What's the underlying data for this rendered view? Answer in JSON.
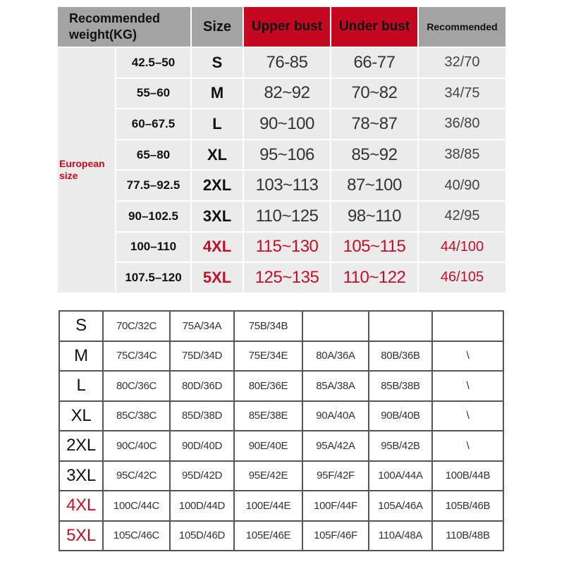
{
  "colors": {
    "accent_red": "#c40820",
    "header_gray": "#a3a3a3",
    "body_gray": "#ebebeb"
  },
  "top_table": {
    "headers": {
      "weight": "Recommended weight(KG)",
      "size": "Size",
      "upper_bust": "Upper bust",
      "under_bust": "Under bust",
      "recommended": "Recommended"
    },
    "group_label": "European size",
    "rows": [
      {
        "weight": "42.5–50",
        "size": "S",
        "upper": "76-85",
        "under": "66-77",
        "rec": "32/70",
        "highlight": false
      },
      {
        "weight": "55–60",
        "size": "M",
        "upper": "82~92",
        "under": "70~82",
        "rec": "34/75",
        "highlight": false
      },
      {
        "weight": "60–67.5",
        "size": "L",
        "upper": "90~100",
        "under": "78~87",
        "rec": "36/80",
        "highlight": false
      },
      {
        "weight": "65–80",
        "size": "XL",
        "upper": "95~106",
        "under": "85~92",
        "rec": "38/85",
        "highlight": false
      },
      {
        "weight": "77.5–92.5",
        "size": "2XL",
        "upper": "103~113",
        "under": "87~100",
        "rec": "40/90",
        "highlight": false
      },
      {
        "weight": "90–102.5",
        "size": "3XL",
        "upper": "110~125",
        "under": "98~110",
        "rec": "42/95",
        "highlight": false
      },
      {
        "weight": "100–110",
        "size": "4XL",
        "upper": "115~130",
        "under": "105~115",
        "rec": "44/100",
        "highlight": true
      },
      {
        "weight": "107.5–120",
        "size": "5XL",
        "upper": "125~135",
        "under": "110~122",
        "rec": "46/105",
        "highlight": true
      }
    ]
  },
  "bottom_table": {
    "rows": [
      {
        "size": "S",
        "cells": [
          "70C/32C",
          "75A/34A",
          "75B/34B",
          "",
          "",
          ""
        ],
        "highlight": false
      },
      {
        "size": "M",
        "cells": [
          "75C/34C",
          "75D/34D",
          "75E/34E",
          "80A/36A",
          "80B/36B",
          "\\"
        ],
        "highlight": false
      },
      {
        "size": "L",
        "cells": [
          "80C/36C",
          "80D/36D",
          "80E/36E",
          "85A/38A",
          "85B/38B",
          "\\"
        ],
        "highlight": false
      },
      {
        "size": "XL",
        "cells": [
          "85C/38C",
          "85D/38D",
          "85E/38E",
          "90A/40A",
          "90B/40B",
          "\\"
        ],
        "highlight": false
      },
      {
        "size": "2XL",
        "cells": [
          "90C/40C",
          "90D/40D",
          "90E/40E",
          "95A/42A",
          "95B/42B",
          "\\"
        ],
        "highlight": false
      },
      {
        "size": "3XL",
        "cells": [
          "95C/42C",
          "95D/42D",
          "95E/42E",
          "95F/42F",
          "100A/44A",
          "100B/44B"
        ],
        "highlight": false
      },
      {
        "size": "4XL",
        "cells": [
          "100C/44C",
          "100D/44D",
          "100E/44E",
          "100F/44F",
          "105A/46A",
          "105B/46B"
        ],
        "highlight": true
      },
      {
        "size": "5XL",
        "cells": [
          "105C/46C",
          "105D/46D",
          "105E/46E",
          "105F/46F",
          "110A/48A",
          "110B/48B"
        ],
        "highlight": true
      }
    ]
  }
}
